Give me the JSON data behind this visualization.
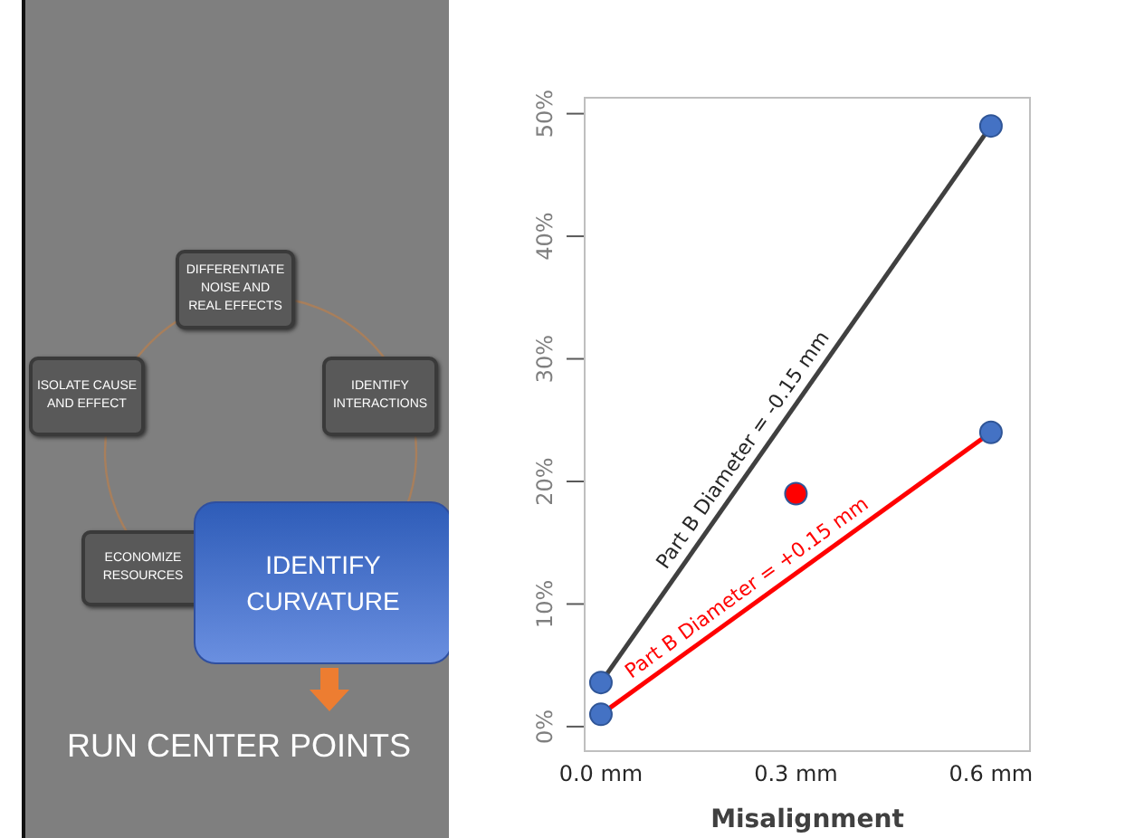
{
  "chart_data": [
    {
      "type": "other",
      "annotations": [
        "DIFFERENTIATE NOISE AND REAL EFFECTS",
        "IDENTIFY INTERACTIONS",
        "ISOLATE CAUSE AND EFFECT",
        "ECONOMIZE RESOURCES",
        "IDENTIFY CURVATURE",
        "RUN CENTER POINTS"
      ]
    },
    {
      "type": "line",
      "xlabel": "Misalignment",
      "xlim": [
        -0.025,
        0.66
      ],
      "xticks": [
        {
          "value": 0,
          "label": "0.0 mm"
        },
        {
          "value": 0.3,
          "label": "0.3 mm"
        },
        {
          "value": 0.6,
          "label": "0.6 mm"
        }
      ],
      "ylim": [
        -2,
        51.3
      ],
      "yticks": [
        {
          "value": 0,
          "label": "0%"
        },
        {
          "value": 10,
          "label": "10%"
        },
        {
          "value": 20,
          "label": "20%"
        },
        {
          "value": 30,
          "label": "30%"
        },
        {
          "value": 40,
          "label": "40%"
        },
        {
          "value": 50,
          "label": "50%"
        }
      ],
      "series": [
        {
          "name": "Part B Diameter = -0.15 mm",
          "type": "line",
          "color": "#404040",
          "x": [
            0,
            0.6
          ],
          "values": [
            3.6,
            49
          ]
        },
        {
          "name": "Part B Diameter = +0.15 mm",
          "type": "line",
          "color": "#ff0000",
          "x": [
            0,
            0.6
          ],
          "values": [
            1,
            24
          ]
        },
        {
          "type": "scatter",
          "marker": "circle",
          "color": "#4472c4",
          "x": [
            0,
            0,
            0.6,
            0.6
          ],
          "values": [
            3.6,
            1,
            49,
            24
          ]
        },
        {
          "type": "scatter",
          "marker": "circle",
          "color": "#ff0000",
          "x": [
            0.3
          ],
          "values": [
            19
          ]
        }
      ]
    }
  ]
}
